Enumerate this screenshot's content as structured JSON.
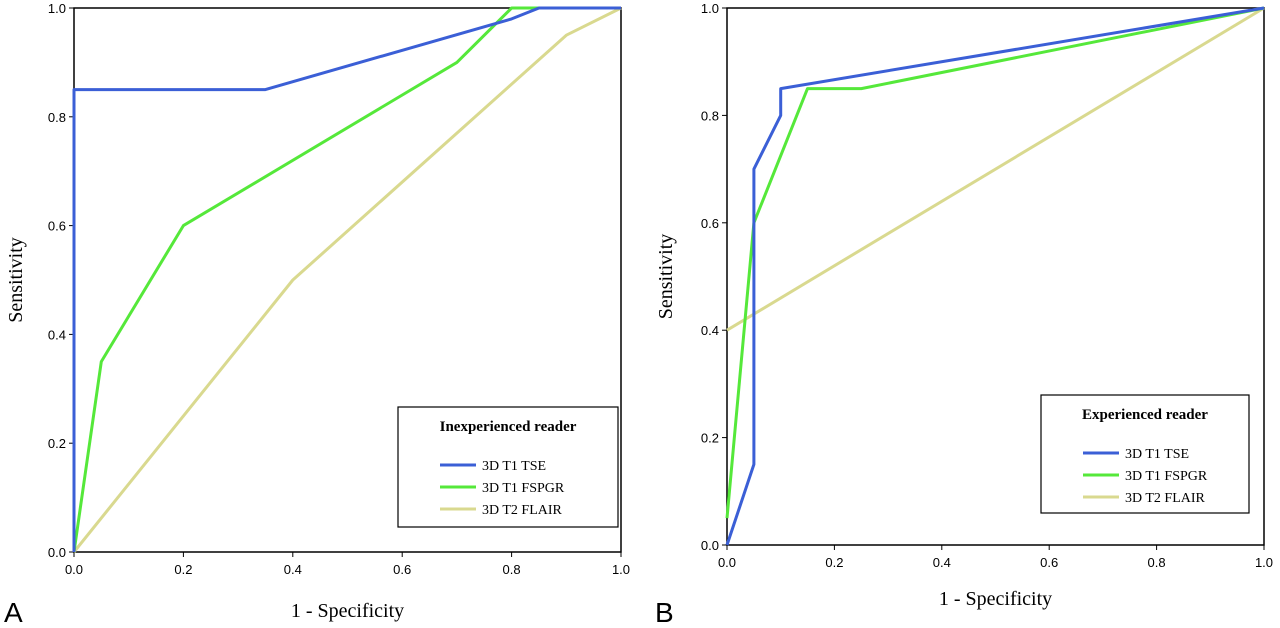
{
  "colors": {
    "tse": "#3b5fd6",
    "fspgr": "#55e83a",
    "flair": "#d9d98f",
    "axis": "#000000"
  },
  "chart_data": [
    {
      "type": "line",
      "panel": "A",
      "xlabel": "1 - Specificity",
      "ylabel": "Sensitivity",
      "xlim": [
        0,
        1
      ],
      "ylim": [
        0,
        1
      ],
      "xticks": [
        "0.0",
        "0.2",
        "0.4",
        "0.6",
        "0.8",
        "1.0"
      ],
      "yticks": [
        "0.0",
        "0.2",
        "0.4",
        "0.6",
        "0.8",
        "1.0"
      ],
      "legend_title": "Inexperienced reader",
      "legend_position": "bottom-right",
      "grid": false,
      "series": [
        {
          "name": "3D T1 TSE",
          "color": "#3b5fd6",
          "points": [
            [
              0,
              0
            ],
            [
              0,
              0.85
            ],
            [
              0.35,
              0.85
            ],
            [
              0.8,
              0.98
            ],
            [
              0.85,
              1.0
            ],
            [
              1.0,
              1.0
            ]
          ]
        },
        {
          "name": "3D T1 FSPGR",
          "color": "#55e83a",
          "points": [
            [
              0,
              0
            ],
            [
              0.05,
              0.35
            ],
            [
              0.2,
              0.6
            ],
            [
              0.7,
              0.9
            ],
            [
              0.8,
              1.0
            ],
            [
              1.0,
              1.0
            ]
          ]
        },
        {
          "name": "3D T2 FLAIR",
          "color": "#d9d98f",
          "points": [
            [
              0,
              0
            ],
            [
              0.4,
              0.5
            ],
            [
              0.9,
              0.95
            ],
            [
              1.0,
              1.0
            ]
          ]
        }
      ]
    },
    {
      "type": "line",
      "panel": "B",
      "xlabel": "1 - Specificity",
      "ylabel": "Sensitivity",
      "xlim": [
        0,
        1
      ],
      "ylim": [
        0,
        1
      ],
      "xticks": [
        "0.0",
        "0.2",
        "0.4",
        "0.6",
        "0.8",
        "1.0"
      ],
      "yticks": [
        "0.0",
        "0.2",
        "0.4",
        "0.6",
        "0.8",
        "1.0"
      ],
      "legend_title": "Experienced reader",
      "legend_position": "bottom-right",
      "grid": false,
      "series": [
        {
          "name": "3D T1 TSE",
          "color": "#3b5fd6",
          "points": [
            [
              0,
              0
            ],
            [
              0.05,
              0.15
            ],
            [
              0.05,
              0.7
            ],
            [
              0.1,
              0.8
            ],
            [
              0.1,
              0.85
            ],
            [
              1.0,
              1.0
            ]
          ]
        },
        {
          "name": "3D T1 FSPGR",
          "color": "#55e83a",
          "points": [
            [
              0,
              0.05
            ],
            [
              0.05,
              0.6
            ],
            [
              0.15,
              0.85
            ],
            [
              0.25,
              0.85
            ],
            [
              1.0,
              1.0
            ]
          ]
        },
        {
          "name": "3D T2 FLAIR",
          "color": "#d9d98f",
          "points": [
            [
              0,
              0.4
            ],
            [
              1.0,
              1.0
            ]
          ]
        }
      ]
    }
  ]
}
